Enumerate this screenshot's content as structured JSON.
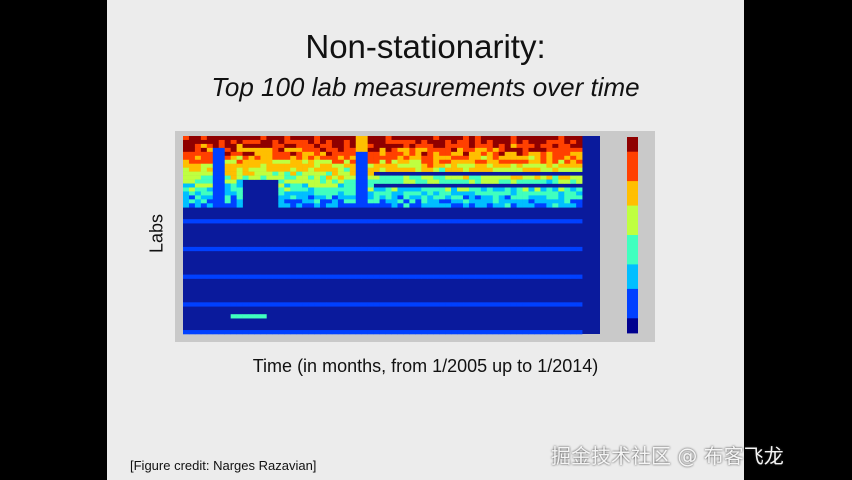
{
  "slide": {
    "title": "Non-stationarity:",
    "subtitle": "Top 100 lab measurements over time",
    "y_axis_label": "Labs",
    "x_axis_label": "Time (in months, from 1/2005 up to 1/2014)",
    "credit": "[Figure credit: Narges Razavian]"
  },
  "watermark": "掘金技术社区 @ 布客飞龙",
  "chart_data": {
    "type": "heatmap",
    "colormap": [
      "#00008f",
      "#0040ff",
      "#00bfff",
      "#40ffbf",
      "#bfff40",
      "#ffbf00",
      "#ff4000",
      "#8f0000"
    ],
    "colorbar": true
  }
}
